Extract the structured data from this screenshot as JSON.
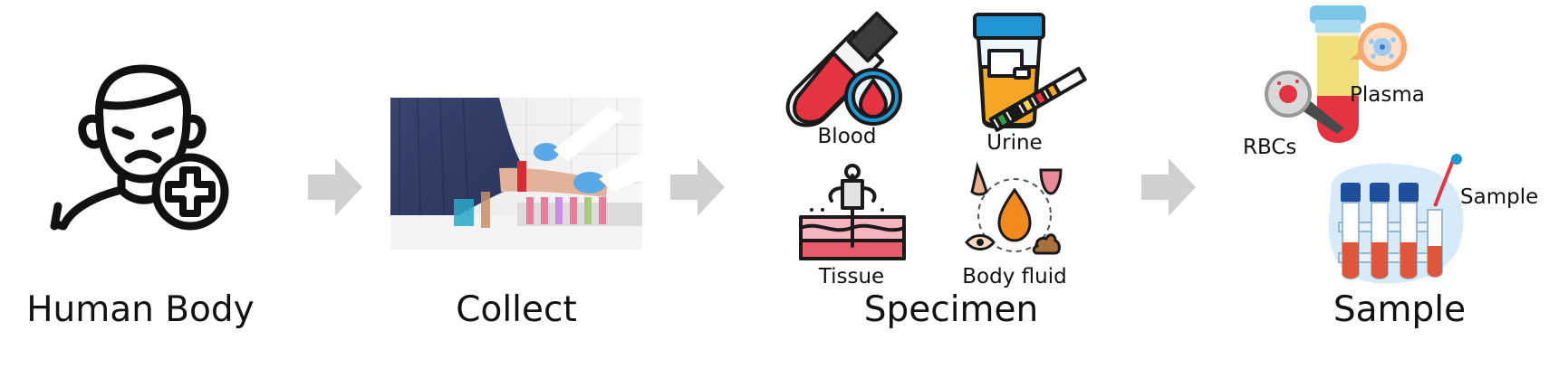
{
  "stages": [
    {
      "label": "Human Body"
    },
    {
      "label": "Collect"
    },
    {
      "label": "Specimen"
    },
    {
      "label": "Sample"
    }
  ],
  "specimen_types": [
    {
      "label": "Blood"
    },
    {
      "label": "Urine"
    },
    {
      "label": "Tissue"
    },
    {
      "label": "Body fluid"
    }
  ],
  "sample_parts": {
    "plasma": "Plasma",
    "rbcs": "RBCs",
    "sample": "Sample"
  },
  "colors": {
    "arrow": "#d0d0d0",
    "blood_red": "#e53341",
    "urine_orange": "#f5a623",
    "cap_blue": "#2196d3",
    "tube_navy": "#1f4e9c",
    "tissue_pink": "#f7b6bf",
    "plasma_yellow": "#f0e07a"
  },
  "icons": [
    "sick-person-medical-icon",
    "blood-draw-photo",
    "blood-tube-icon",
    "urine-cup-icon",
    "tissue-biopsy-icon",
    "body-fluid-icon",
    "centrifuged-tube-icon",
    "sample-rack-icon"
  ]
}
